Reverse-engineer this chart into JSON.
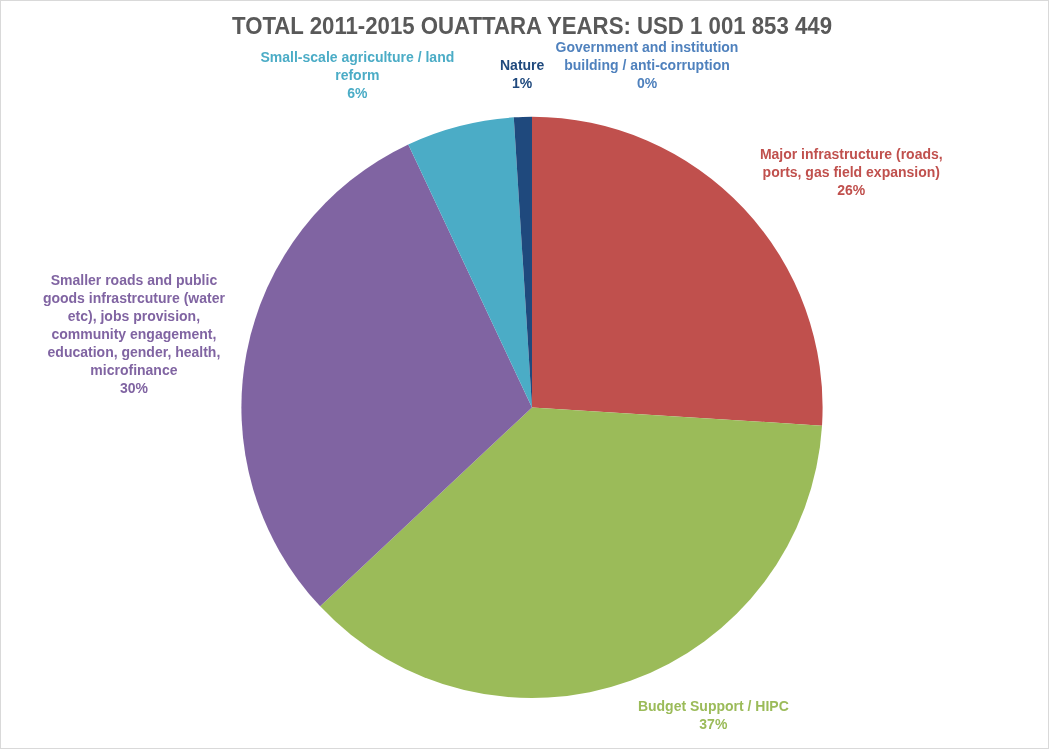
{
  "chart_data": {
    "type": "pie",
    "title": "TOTAL 2011-2015 OUATTARA YEARS: USD 1 001 853 449",
    "categories": [
      "Government and institution building / anti-corruption",
      "Major infrastructure (roads, ports, gas field expansion)",
      "Budget Support / HIPC",
      "Smaller roads and public goods infrastrcuture (water etc), jobs provision, community engagement, education, gender, health, microfinance",
      "Small-scale agriculture / land reform",
      "Nature"
    ],
    "values": [
      0,
      26,
      37,
      30,
      6,
      1
    ],
    "colors": [
      "#4f81bd",
      "#c0504d",
      "#9bbb59",
      "#8064a2",
      "#4bacc6",
      "#1f497d"
    ],
    "value_labels": [
      "0%",
      "26%",
      "37%",
      "30%",
      "6%",
      "1%"
    ],
    "legend": false
  }
}
